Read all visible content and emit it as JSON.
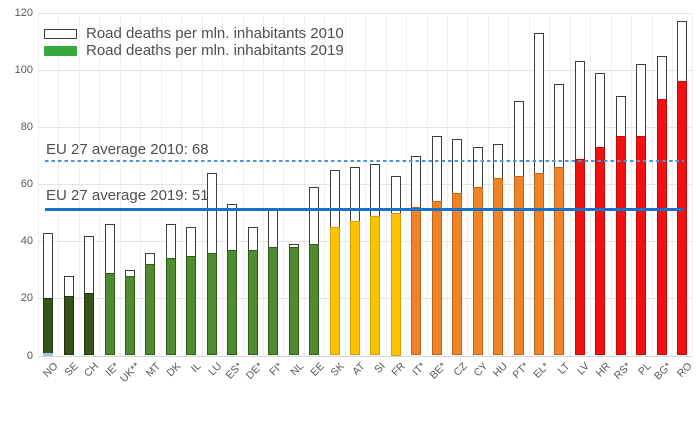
{
  "chart_data": {
    "type": "bar",
    "title": "",
    "categories": [
      "NO",
      "SE",
      "CH",
      "IE*",
      "UK**",
      "MT",
      "DK",
      "IL",
      "LU",
      "ES*",
      "DE*",
      "FI*",
      "NL",
      "EE",
      "SK",
      "AT",
      "SI",
      "FR",
      "IT*",
      "BE*",
      "CZ",
      "CY",
      "HU",
      "PT*",
      "EL*",
      "LT",
      "LV",
      "HR",
      "RS*",
      "PL",
      "BG*",
      "RO"
    ],
    "series": [
      {
        "name": "Road deaths per mln. inhabitants 2010",
        "values": [
          43,
          28,
          42,
          46,
          30,
          36,
          46,
          45,
          64,
          53,
          45,
          51,
          39,
          59,
          65,
          66,
          67,
          63,
          70,
          77,
          76,
          73,
          74,
          89,
          113,
          95,
          103,
          99,
          91,
          102,
          105,
          117
        ]
      },
      {
        "name": "Road deaths per mln. inhabitants 2019",
        "values": [
          20,
          21,
          22,
          29,
          28,
          32,
          34,
          35,
          36,
          37,
          37,
          38,
          38,
          39,
          45,
          47,
          49,
          50,
          52,
          54,
          57,
          59,
          62,
          63,
          64,
          66,
          69,
          73,
          77,
          77,
          90,
          96
        ]
      }
    ],
    "bar_color_groups": [
      "dark_green",
      "dark_green",
      "dark_green",
      "green",
      "green",
      "green",
      "green",
      "green",
      "green",
      "green",
      "green",
      "green",
      "green",
      "green",
      "yellow",
      "yellow",
      "yellow",
      "yellow",
      "orange",
      "orange",
      "orange",
      "orange",
      "orange",
      "orange",
      "orange",
      "orange",
      "red",
      "red",
      "red",
      "red",
      "red",
      "red"
    ],
    "ylim": [
      0,
      120
    ],
    "yticks": [
      0,
      20,
      40,
      60,
      80,
      100,
      120
    ],
    "grid": true,
    "legend_position": "top-left",
    "reference_lines": [
      {
        "label": "EU 27 average 2010: 68",
        "value": 68,
        "style": "dashed",
        "color": "#4c95d6"
      },
      {
        "label": "EU 27 average 2019: 51",
        "value": 51,
        "style": "solid",
        "color": "#1a70c4"
      }
    ],
    "colors": {
      "palette": {
        "dark_green": {
          "fill": "#345418",
          "stroke": "#1f330e"
        },
        "green": {
          "fill": "#4e8d2f",
          "stroke": "#2f5a17"
        },
        "yellow": {
          "fill": "#fdc300",
          "stroke": "#d6a000"
        },
        "orange": {
          "fill": "#f08228",
          "stroke": "#c3641a"
        },
        "red": {
          "fill": "#f21010",
          "stroke": "#c40808"
        }
      },
      "outline_series": {
        "fill": "#ffffff",
        "stroke": "#3d3d3d"
      },
      "legend_green": "#37a93c",
      "baseline_artifact": "#aebde4",
      "axis_text": "#595959"
    }
  }
}
